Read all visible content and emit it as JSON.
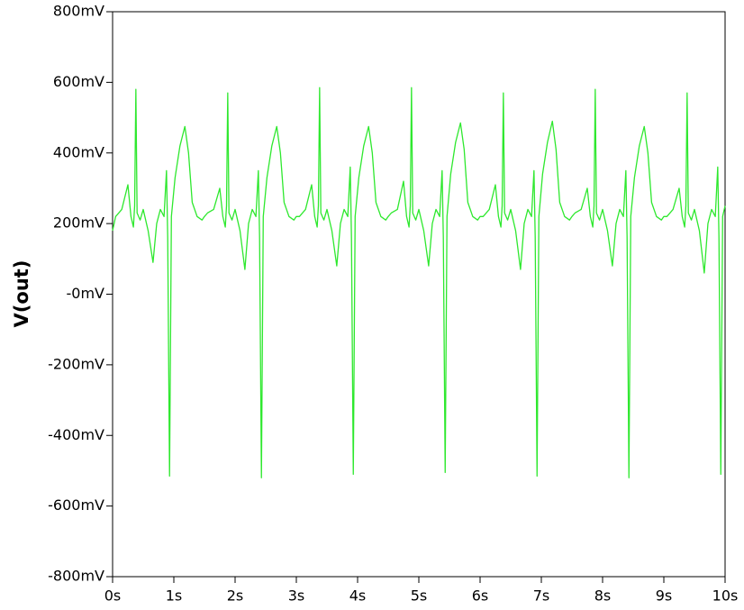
{
  "chart_data": {
    "type": "line",
    "y_label": "V(out)",
    "xlim": [
      0,
      10
    ],
    "ylim": [
      -800,
      800
    ],
    "xticks": [
      {
        "value": 0,
        "label": "0s"
      },
      {
        "value": 1,
        "label": "1s"
      },
      {
        "value": 2,
        "label": "2s"
      },
      {
        "value": 3,
        "label": "3s"
      },
      {
        "value": 4,
        "label": "4s"
      },
      {
        "value": 5,
        "label": "5s"
      },
      {
        "value": 6,
        "label": "6s"
      },
      {
        "value": 7,
        "label": "7s"
      },
      {
        "value": 8,
        "label": "8s"
      },
      {
        "value": 9,
        "label": "9s"
      },
      {
        "value": 10,
        "label": "10s"
      }
    ],
    "yticks": [
      {
        "value": -800,
        "label": "-800mV"
      },
      {
        "value": -600,
        "label": "-600mV"
      },
      {
        "value": -400,
        "label": "-400mV"
      },
      {
        "value": -200,
        "label": "-200mV"
      },
      {
        "value": 0,
        "label": "-0mV"
      },
      {
        "value": 200,
        "label": "200mV"
      },
      {
        "value": 400,
        "label": "400mV"
      },
      {
        "value": 600,
        "label": "600mV"
      },
      {
        "value": 800,
        "label": "800mV"
      }
    ],
    "series": [
      {
        "name": "V(out)",
        "color": "#2ee82e",
        "x": [
          0,
          0.05,
          0.15,
          0.25,
          0.3,
          0.34,
          0.36,
          0.38,
          0.4,
          0.45,
          0.5,
          0.58,
          0.66,
          0.72,
          0.78,
          0.84,
          0.88,
          0.9,
          0.93,
          0.96,
          1.02,
          1.1,
          1.18,
          1.24,
          1.3,
          1.38,
          1.46,
          1.5,
          1.55,
          1.65,
          1.75,
          1.8,
          1.84,
          1.86,
          1.88,
          1.9,
          1.95,
          2,
          2.08,
          2.16,
          2.22,
          2.28,
          2.34,
          2.38,
          2.4,
          2.43,
          2.46,
          2.52,
          2.6,
          2.68,
          2.74,
          2.8,
          2.88,
          2.96,
          3,
          3.05,
          3.15,
          3.25,
          3.3,
          3.34,
          3.36,
          3.38,
          3.4,
          3.45,
          3.5,
          3.58,
          3.66,
          3.72,
          3.78,
          3.84,
          3.88,
          3.9,
          3.93,
          3.96,
          4.02,
          4.1,
          4.18,
          4.24,
          4.3,
          4.38,
          4.46,
          4.5,
          4.55,
          4.65,
          4.75,
          4.8,
          4.84,
          4.86,
          4.88,
          4.9,
          4.95,
          5,
          5.08,
          5.16,
          5.22,
          5.28,
          5.34,
          5.38,
          5.4,
          5.43,
          5.46,
          5.52,
          5.6,
          5.68,
          5.74,
          5.8,
          5.88,
          5.96,
          6,
          6.05,
          6.15,
          6.25,
          6.3,
          6.34,
          6.36,
          6.38,
          6.4,
          6.45,
          6.5,
          6.58,
          6.66,
          6.72,
          6.78,
          6.84,
          6.88,
          6.9,
          6.93,
          6.96,
          7.02,
          7.1,
          7.18,
          7.24,
          7.3,
          7.38,
          7.46,
          7.5,
          7.55,
          7.65,
          7.75,
          7.8,
          7.84,
          7.86,
          7.88,
          7.9,
          7.95,
          8,
          8.08,
          8.16,
          8.22,
          8.28,
          8.34,
          8.38,
          8.4,
          8.43,
          8.46,
          8.52,
          8.6,
          8.68,
          8.74,
          8.8,
          8.88,
          8.96,
          9,
          9.05,
          9.15,
          9.25,
          9.3,
          9.34,
          9.36,
          9.38,
          9.4,
          9.45,
          9.5,
          9.58,
          9.66,
          9.72,
          9.78,
          9.84,
          9.88,
          9.9,
          9.93,
          9.96,
          10
        ],
        "values": [
          180,
          220,
          240,
          310,
          220,
          190,
          250,
          580,
          230,
          210,
          240,
          180,
          90,
          200,
          240,
          220,
          350,
          160,
          -515,
          220,
          330,
          420,
          475,
          400,
          260,
          220,
          210,
          220,
          230,
          240,
          300,
          220,
          190,
          250,
          570,
          230,
          210,
          240,
          180,
          70,
          200,
          240,
          220,
          350,
          160,
          -520,
          220,
          330,
          420,
          475,
          400,
          260,
          220,
          210,
          220,
          220,
          240,
          310,
          220,
          190,
          250,
          585,
          230,
          210,
          240,
          180,
          80,
          200,
          240,
          220,
          360,
          160,
          -510,
          220,
          330,
          420,
          475,
          400,
          260,
          220,
          210,
          220,
          230,
          240,
          320,
          220,
          190,
          250,
          585,
          230,
          210,
          240,
          180,
          80,
          200,
          240,
          220,
          350,
          160,
          -505,
          220,
          340,
          430,
          485,
          410,
          260,
          220,
          210,
          220,
          220,
          240,
          310,
          220,
          190,
          250,
          570,
          230,
          210,
          240,
          180,
          70,
          200,
          240,
          220,
          350,
          160,
          -515,
          220,
          340,
          430,
          490,
          410,
          260,
          220,
          210,
          220,
          230,
          240,
          300,
          220,
          190,
          250,
          580,
          230,
          210,
          240,
          180,
          80,
          200,
          240,
          220,
          350,
          160,
          -520,
          220,
          330,
          420,
          475,
          400,
          260,
          220,
          210,
          220,
          220,
          240,
          300,
          220,
          190,
          250,
          570,
          230,
          210,
          240,
          180,
          60,
          200,
          240,
          220,
          360,
          160,
          -510,
          220,
          250
        ]
      }
    ]
  }
}
